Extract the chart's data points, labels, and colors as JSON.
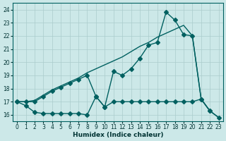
{
  "xlabel": "Humidex (Indice chaleur)",
  "bg_color": "#cce8e8",
  "grid_color": "#aacccc",
  "line_color": "#006060",
  "xlim": [
    -0.5,
    23.5
  ],
  "ylim": [
    15.5,
    24.5
  ],
  "yticks": [
    16,
    17,
    18,
    19,
    20,
    21,
    22,
    23,
    24
  ],
  "xticks": [
    0,
    1,
    2,
    3,
    4,
    5,
    6,
    7,
    8,
    9,
    10,
    11,
    12,
    13,
    14,
    15,
    16,
    17,
    18,
    19,
    20,
    21,
    22,
    23
  ],
  "series": [
    {
      "x": [
        0,
        1,
        2,
        3,
        4,
        5,
        6,
        7,
        8,
        9,
        10,
        11,
        12,
        13,
        14,
        15,
        16,
        17,
        18,
        19,
        20,
        21,
        22,
        23
      ],
      "y": [
        17.0,
        17.0,
        17.1,
        17.5,
        17.9,
        18.2,
        18.5,
        18.8,
        19.2,
        19.5,
        19.8,
        20.1,
        20.4,
        20.8,
        21.2,
        21.5,
        21.9,
        22.2,
        22.5,
        22.8,
        22.0,
        17.2,
        16.3,
        15.8
      ],
      "marker": null,
      "markersize": 0,
      "linewidth": 1.0
    },
    {
      "x": [
        0,
        1,
        2,
        3,
        4,
        5,
        6,
        7,
        8,
        9,
        10,
        11,
        12,
        13,
        14,
        15,
        16,
        17,
        18,
        19,
        20,
        21,
        22
      ],
      "y": [
        17.0,
        17.0,
        17.0,
        17.4,
        17.8,
        18.1,
        18.4,
        18.7,
        19.0,
        17.4,
        16.6,
        19.3,
        19.0,
        19.5,
        20.3,
        21.3,
        21.5,
        23.8,
        23.2,
        22.1,
        22.0,
        17.2,
        16.3
      ],
      "marker": "D",
      "markersize": 3.0,
      "linewidth": 1.0
    },
    {
      "x": [
        0,
        1,
        2,
        3,
        4,
        5,
        6,
        7,
        8,
        9,
        10,
        11,
        12,
        13,
        14,
        15,
        16,
        17,
        18,
        19,
        20,
        21,
        22,
        23
      ],
      "y": [
        17.0,
        16.7,
        16.2,
        16.1,
        16.1,
        16.1,
        16.1,
        16.1,
        16.0,
        17.4,
        16.6,
        17.0,
        17.0,
        17.0,
        17.0,
        17.0,
        17.0,
        17.0,
        17.0,
        17.0,
        17.0,
        17.2,
        16.3,
        15.8
      ],
      "marker": "D",
      "markersize": 3.0,
      "linewidth": 1.0
    }
  ]
}
